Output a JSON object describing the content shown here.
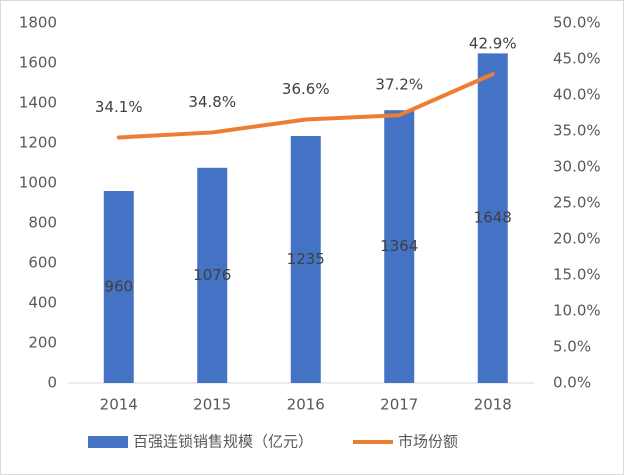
{
  "chart_data": {
    "type": "bar_line",
    "categories": [
      "2014",
      "2015",
      "2016",
      "2017",
      "2018"
    ],
    "series": [
      {
        "name": "百强连锁销售规模（亿元）",
        "type": "bar",
        "color": "#4472C4",
        "values": [
          960,
          1076,
          1235,
          1364,
          1648
        ]
      },
      {
        "name": "市场份额",
        "type": "line",
        "axis": "y2",
        "color": "#ED7D31",
        "values": [
          34.1,
          34.8,
          36.6,
          37.2,
          42.9
        ],
        "value_labels": [
          "34.1%",
          "34.8%",
          "36.6%",
          "37.2%",
          "42.9%"
        ]
      }
    ],
    "ylim": [
      0,
      1800
    ],
    "yticks": [
      0,
      200,
      400,
      600,
      800,
      1000,
      1200,
      1400,
      1600,
      1800
    ],
    "y2lim": [
      0,
      50
    ],
    "y2ticks": [
      {
        "value": 0,
        "label": "0.0%"
      },
      {
        "value": 5,
        "label": "5.0%"
      },
      {
        "value": 10,
        "label": "10.0%"
      },
      {
        "value": 15,
        "label": "15.0%"
      },
      {
        "value": 20,
        "label": "20.0%"
      },
      {
        "value": 25,
        "label": "25.0%"
      },
      {
        "value": 30,
        "label": "30.0%"
      },
      {
        "value": 35,
        "label": "35.0%"
      },
      {
        "value": 40,
        "label": "40.0%"
      },
      {
        "value": 45,
        "label": "45.0%"
      },
      {
        "value": 50,
        "label": "50.0%"
      }
    ],
    "legend": "bottom"
  }
}
